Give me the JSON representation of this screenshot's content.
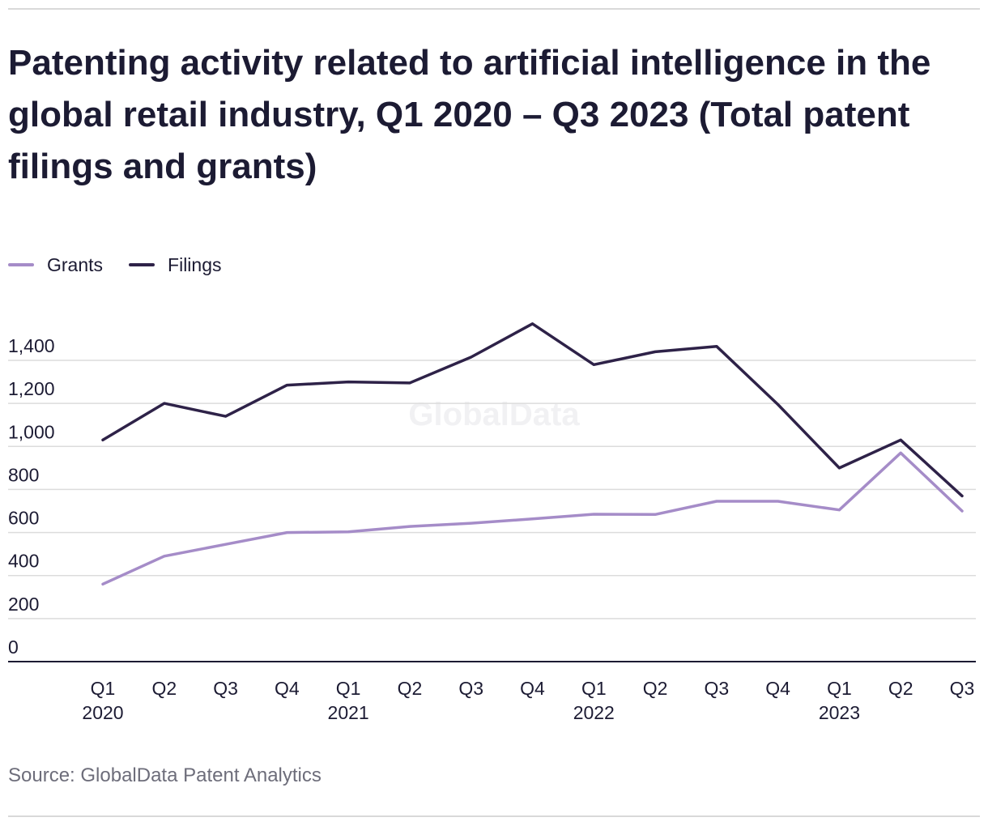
{
  "title": "Patenting activity related to artificial intelligence in the global retail industry, Q1 2020 – Q3 2023 (Total patent filings and grants)",
  "source": "Source: GlobalData Patent Analytics",
  "watermark": "GlobalData",
  "colors": {
    "grants": "#a58cc8",
    "filings": "#2e2248",
    "grid": "#dcdcdc",
    "axis": "#1c1b33",
    "text": "#1c1b33"
  },
  "legend": [
    {
      "label": "Grants",
      "color": "#a58cc8"
    },
    {
      "label": "Filings",
      "color": "#2e2248"
    }
  ],
  "chart_data": {
    "type": "line",
    "title": "Patenting activity related to artificial intelligence in the global retail industry, Q1 2020 – Q3 2023 (Total patent filings and grants)",
    "xlabel": "",
    "ylabel": "",
    "ylim": [
      0,
      1400
    ],
    "yticks": [
      0,
      200,
      400,
      600,
      800,
      1000,
      1200,
      1400
    ],
    "ytick_labels": [
      "0",
      "200",
      "400",
      "600",
      "800",
      "1,000",
      "1,200",
      "1,400"
    ],
    "categories": [
      "Q1 2020",
      "Q2 2020",
      "Q3 2020",
      "Q4 2020",
      "Q1 2021",
      "Q2 2021",
      "Q3 2021",
      "Q4 2021",
      "Q1 2022",
      "Q2 2022",
      "Q3 2022",
      "Q4 2022",
      "Q1 2023",
      "Q2 2023",
      "Q3 2023"
    ],
    "tick_quarters": [
      "Q1",
      "Q2",
      "Q3",
      "Q4",
      "Q1",
      "Q2",
      "Q3",
      "Q4",
      "Q1",
      "Q2",
      "Q3",
      "Q4",
      "Q1",
      "Q2",
      "Q3"
    ],
    "tick_years": [
      "2020",
      "",
      "",
      "",
      "2021",
      "",
      "",
      "",
      "2022",
      "",
      "",
      "",
      "2023",
      "",
      ""
    ],
    "grid": true,
    "legend_position": "top-left",
    "series": [
      {
        "name": "Grants",
        "values": [
          360,
          490,
          545,
          600,
          603,
          628,
          643,
          663,
          685,
          684,
          745,
          745,
          705,
          970,
          700
        ]
      },
      {
        "name": "Filings",
        "values": [
          1030,
          1200,
          1140,
          1285,
          1300,
          1295,
          1415,
          1570,
          1380,
          1440,
          1465,
          1195,
          900,
          1030,
          770
        ]
      }
    ]
  }
}
